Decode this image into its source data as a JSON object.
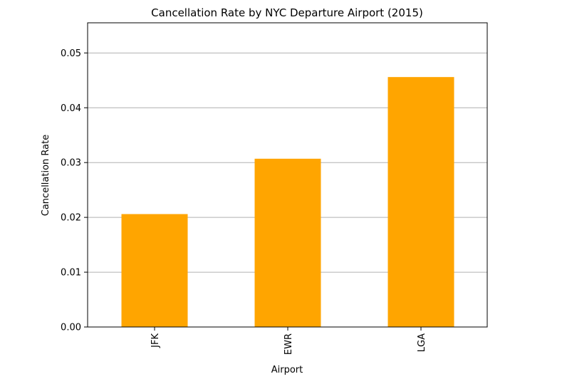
{
  "chart_data": {
    "type": "bar",
    "title": "Cancellation Rate by NYC Departure Airport (2015)",
    "xlabel": "Airport",
    "ylabel": "Cancellation Rate",
    "categories": [
      "JFK",
      "EWR",
      "LGA"
    ],
    "values": [
      0.0206,
      0.0307,
      0.0456
    ],
    "ylim": [
      0,
      0.0555
    ],
    "yticks": [
      "0.00",
      "0.01",
      "0.02",
      "0.03",
      "0.04",
      "0.05"
    ],
    "grid": "y",
    "bar_color": "#ffa500",
    "grid_color": "#b0b0b0"
  }
}
